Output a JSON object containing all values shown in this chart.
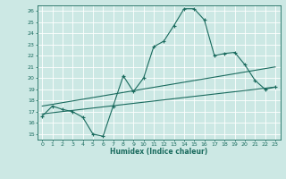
{
  "xlabel": "Humidex (Indice chaleur)",
  "ylabel": "",
  "bg_color": "#cce8e4",
  "line_color": "#1a6b5e",
  "grid_color": "#ffffff",
  "xlim": [
    -0.5,
    23.5
  ],
  "ylim": [
    14.5,
    26.5
  ],
  "xticks": [
    0,
    1,
    2,
    3,
    4,
    5,
    6,
    7,
    8,
    9,
    10,
    11,
    12,
    13,
    14,
    15,
    16,
    17,
    18,
    19,
    20,
    21,
    22,
    23
  ],
  "yticks": [
    15,
    16,
    17,
    18,
    19,
    20,
    21,
    22,
    23,
    24,
    25,
    26
  ],
  "line1_x": [
    0,
    1,
    2,
    3,
    4,
    5,
    6,
    7,
    8,
    9,
    10,
    11,
    12,
    13,
    14,
    15,
    16,
    17,
    18,
    19,
    20,
    21,
    22,
    23
  ],
  "line1_y": [
    16.6,
    17.5,
    17.2,
    17.0,
    16.5,
    15.0,
    14.8,
    17.5,
    20.2,
    18.8,
    20.0,
    22.8,
    23.3,
    24.7,
    26.2,
    26.2,
    25.2,
    22.0,
    22.2,
    22.3,
    21.2,
    19.8,
    19.0,
    19.2
  ],
  "line2_x": [
    0,
    23
  ],
  "line2_y": [
    16.8,
    19.2
  ],
  "line3_x": [
    0,
    23
  ],
  "line3_y": [
    17.5,
    21.0
  ],
  "tick_fontsize": 4.5,
  "xlabel_fontsize": 5.5
}
